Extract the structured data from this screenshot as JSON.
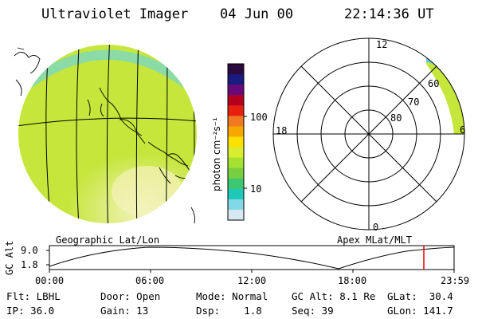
{
  "header": {
    "instrument": "Ultraviolet Imager",
    "date": "04 Jun 00",
    "time": "22:14:36 UT"
  },
  "colorbar": {
    "unit_label": "photon cm⁻²s⁻¹",
    "tick_labels": [
      "100",
      "10"
    ],
    "colors": [
      "#2b0a3d",
      "#1a1a80",
      "#6a0a7a",
      "#b4001e",
      "#e82010",
      "#f07820",
      "#f7a800",
      "#fbe000",
      "#d8ec30",
      "#a6e030",
      "#78d040",
      "#3cc870",
      "#20c8b8",
      "#80d8e8",
      "#d8e8f0"
    ]
  },
  "left_map": {
    "label": "Geographic Lat/Lon",
    "fill_color": "#c6e63c",
    "highlight_color": "#f2f2b8"
  },
  "right_map": {
    "label": "Apex MLat/MLT",
    "mlt_labels": [
      "12",
      "18",
      "0",
      "6"
    ],
    "lat_labels": [
      "60",
      "70",
      "80"
    ]
  },
  "timeline": {
    "axis_title": "GC Alt",
    "y_ticks": [
      "9.0",
      "1.8"
    ],
    "x_ticks": [
      "00:00",
      "06:00",
      "12:00",
      "18:00",
      "23:59"
    ],
    "marker_color": "#e00000"
  },
  "info": {
    "filter": {
      "label": "Flt:",
      "value": "LBHL"
    },
    "door": {
      "label": "Door:",
      "value": "Open"
    },
    "mode": {
      "label": "Mode:",
      "value": "Normal"
    },
    "gc_alt": {
      "label": "GC Alt:",
      "value": "8.1 Re"
    },
    "glat": {
      "label": "GLat:",
      "value": "30.4"
    },
    "ip": {
      "label": "IP:",
      "value": "36.0"
    },
    "gain": {
      "label": "Gain:",
      "value": "13"
    },
    "dsp": {
      "label": "Dsp:",
      "value": "1.8"
    },
    "seq": {
      "label": "Seq:",
      "value": "39"
    },
    "glon": {
      "label": "GLon:",
      "value": "141.7"
    }
  }
}
